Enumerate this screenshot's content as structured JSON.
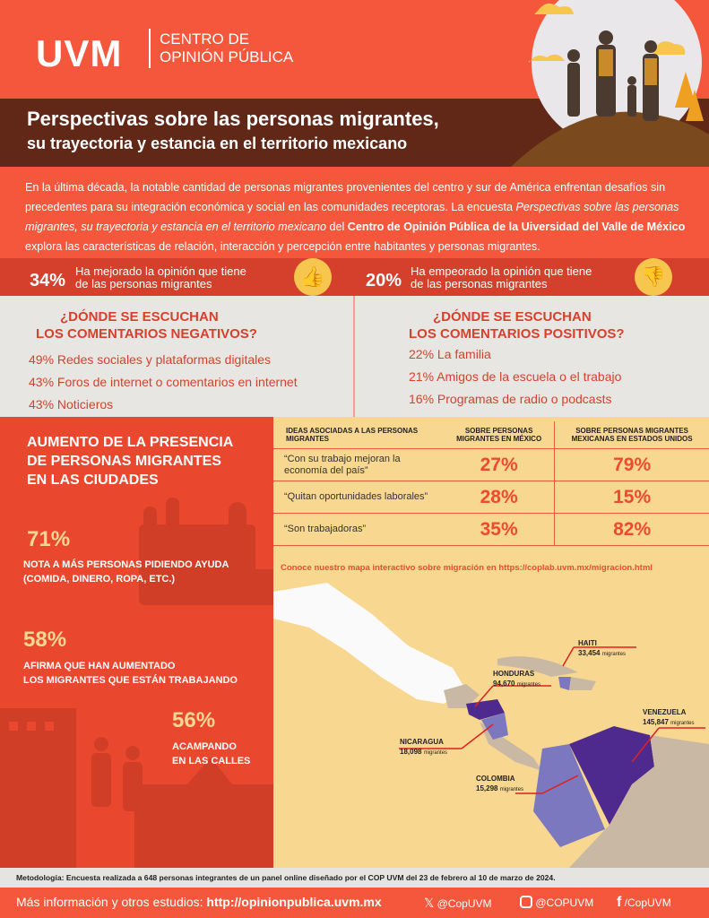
{
  "header": {
    "logo": "UVM",
    "org_line1": "CENTRO DE",
    "org_line2": "OPINIÓN PÚBLICA"
  },
  "title": {
    "line1": "Perspectivas sobre las personas migrantes,",
    "line2": "su trayectoria y estancia en el territorio mexicano"
  },
  "intro": {
    "p1": "En la última década, la notable cantidad de personas migrantes provenientes del centro y sur de América enfrentan desafíos sin precedentes para su integración económica y social en las comunidades receptoras. La encuesta ",
    "italic": "Perspectivas sobre las personas migrantes, su trayectoria y estancia en el territorio mexicano",
    "p2": " del ",
    "bold": "Centro de Opinión Pública de la Uiversidad del Valle de México",
    "p3": " explora las características de relación, interacción y percepción entre habitantes y personas migrantes."
  },
  "stats": [
    {
      "value": "34%",
      "line1": "Ha mejorado la opinión que tiene",
      "line2": "de las personas migrantes",
      "icon": "thumbs-up-icon"
    },
    {
      "value": "20%",
      "line1": "Ha empeorado la opinión que tiene",
      "line2": "de las personas migrantes",
      "icon": "thumbs-down-icon"
    }
  ],
  "negative": {
    "title1": "¿DÓNDE SE ESCUCHAN",
    "title2": "LOS COMENTARIOS NEGATIVOS?",
    "items": [
      "49% Redes sociales y plataformas digitales",
      "43% Foros de internet o comentarios en internet",
      "43% Noticieros"
    ]
  },
  "positive": {
    "title1": "¿DÓNDE SE ESCUCHAN",
    "title2": "LOS COMENTARIOS POSITIVOS?",
    "items": [
      "22% La familia",
      "21% Amigos de la escuela o el trabajo",
      "16% Programas de radio o podcasts"
    ]
  },
  "presence": {
    "title1": "AUMENTO DE LA PRESENCIA",
    "title2": "DE PERSONAS MIGRANTES",
    "title3": "EN LAS CIUDADES",
    "items": [
      {
        "value": "71%",
        "line1": "NOTA A MÁS PERSONAS PIDIENDO AYUDA",
        "line2": "(COMIDA, DINERO, ROPA, ETC.)"
      },
      {
        "value": "58%",
        "line1": "AFIRMA QUE HAN AUMENTADO",
        "line2": "LOS MIGRANTES QUE ESTÁN TRABAJANDO"
      },
      {
        "value": "56%",
        "line1": "ACAMPANDO",
        "line2": "EN LAS CALLES"
      }
    ]
  },
  "table": {
    "headers": [
      "IDEAS ASOCIADAS A LAS PERSONAS MIGRANTES",
      "SOBRE PERSONAS MIGRANTES EN MÉXICO",
      "SOBRE PERSONAS MIGRANTES MEXICANAS EN ESTADOS UNIDOS"
    ],
    "rows": [
      [
        "“Con su trabajo mejoran la economía del país”",
        "27%",
        "79%"
      ],
      [
        "“Quitan oportunidades laborales”",
        "28%",
        "15%"
      ],
      [
        "“Son trabajadoras”",
        "35%",
        "82%"
      ]
    ]
  },
  "map": {
    "link": "Conoce nuestro mapa interactivo sobre migración en https://coplab.uvm.mx/migracion.html",
    "unit": "migrantes",
    "countries": [
      {
        "name": "HAITI",
        "value": "33,454"
      },
      {
        "name": "HONDURAS",
        "value": "94,670"
      },
      {
        "name": "VENEZUELA",
        "value": "145,847"
      },
      {
        "name": "NICARAGUA",
        "value": "18,098"
      },
      {
        "name": "COLOMBIA",
        "value": "15,298"
      }
    ]
  },
  "methodology": "Metodología: Encuesta realizada a 648 personas integrantes de un panel online diseñado por el COP UVM del 23 de febrero al 10 de marzo de 2024.",
  "footer": {
    "more_label": "Más información y otros estudios: ",
    "url": "http://opinionpublica.uvm.mx",
    "x": "@CopUVM",
    "instagram": "@COPUVM",
    "facebook": "/CopUVM"
  },
  "colors": {
    "orange": "#F5573C",
    "brown": "#612818",
    "cream": "#F8D891",
    "yellow": "#F7C64E",
    "purple_dark": "#4E2A8E",
    "purple_light": "#7B78C0"
  }
}
